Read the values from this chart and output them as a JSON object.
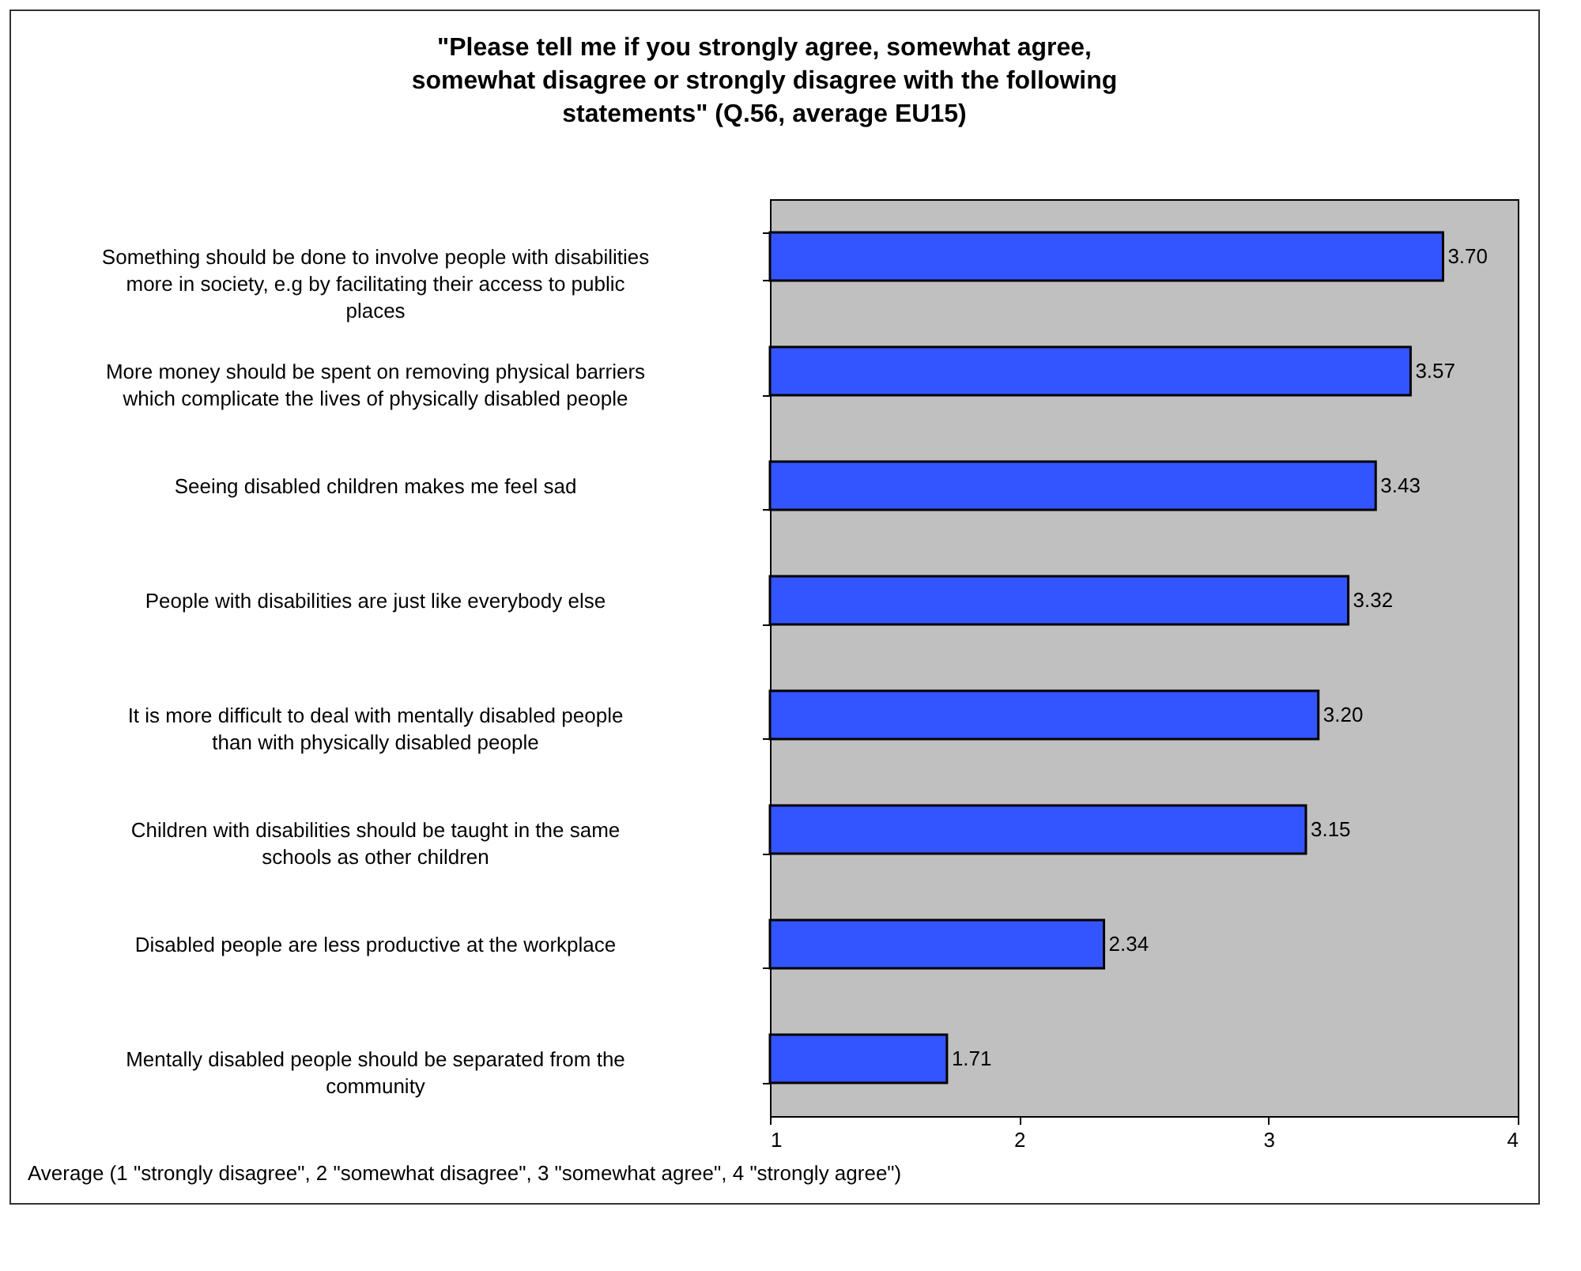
{
  "chart_data": {
    "type": "bar",
    "orientation": "horizontal",
    "title": "\"Please tell me if you strongly agree, somewhat agree, somewhat disagree or strongly disagree with the following statements\" (Q.56, average EU15)",
    "xlabel": "Average (1 \"strongly disagree\", 2 \"somewhat disagree\", 3 \"somewhat agree\", 4 \"strongly agree\")",
    "categories": [
      "Something should be done to involve people with disabilities more in society, e.g by facilitating their access to public places",
      "More money should be spent on removing physical barriers which complicate the lives of physically disabled people",
      "Seeing disabled children makes me feel sad",
      "People with disabilities are just like everybody else",
      "It is more difficult to deal with mentally disabled people than with physically disabled people",
      "Children with disabilities should be taught in the same schools as other children",
      "Disabled people are less productive at the workplace",
      "Mentally disabled people should be separated from the community"
    ],
    "values": [
      3.7,
      3.57,
      3.43,
      3.32,
      3.2,
      3.15,
      2.34,
      1.71
    ],
    "value_labels": [
      "3.70",
      "3.57",
      "3.43",
      "3.32",
      "3.20",
      "3.15",
      "2.34",
      "1.71"
    ],
    "color": "#3355ff",
    "xlim": [
      1,
      4
    ],
    "xticks": [
      1,
      2,
      3,
      4
    ],
    "grid": false
  }
}
